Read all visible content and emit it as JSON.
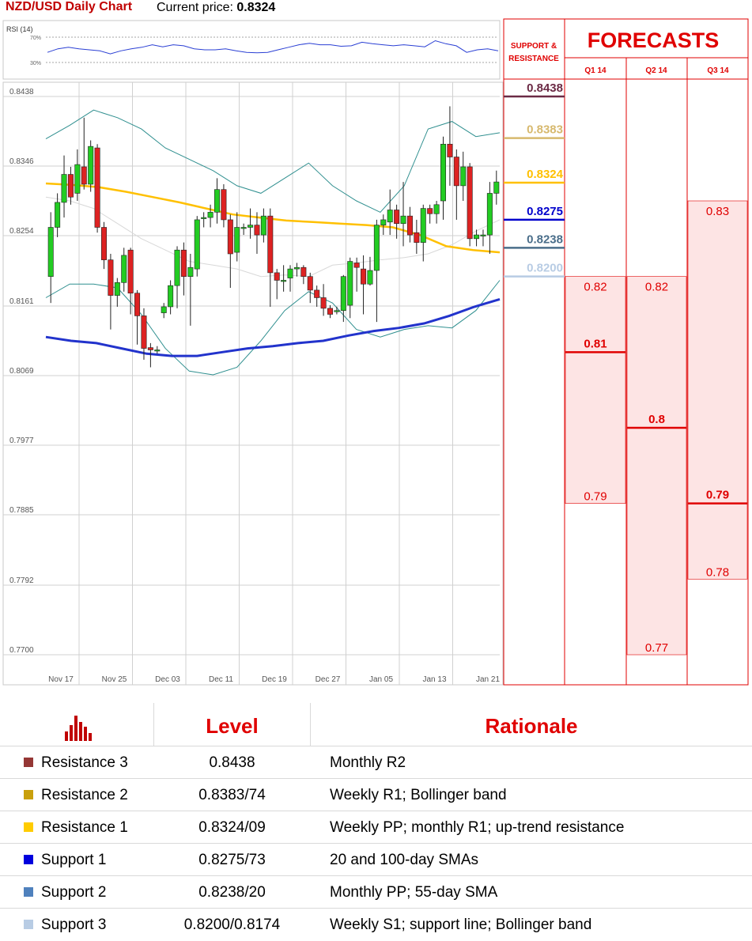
{
  "header": {
    "title": "NZD/USD Daily Chart",
    "price_label": "Current price:",
    "price_value": "0.8324"
  },
  "forecast_panel": {
    "support_resistance_label_1": "SUPPORT &",
    "support_resistance_label_2": "RESISTANCE",
    "title": "FORECASTS",
    "columns": [
      "Q1 14",
      "Q2 14",
      "Q3 14"
    ]
  },
  "chart_data": {
    "type": "candlestick",
    "title": "NZD/USD Daily Chart",
    "ylim": [
      0.77,
      0.846
    ],
    "y_ticks": [
      "0.8438",
      "0.8346",
      "0.8254",
      "0.8161",
      "0.8069",
      "0.7977",
      "0.7885",
      "0.7792",
      "0.7700"
    ],
    "x_ticks": [
      "Nov 17",
      "Nov 25",
      "Dec 03",
      "Dec 11",
      "Dec 19",
      "Dec 27",
      "Jan 05",
      "Jan 13",
      "Jan 21"
    ],
    "rsi": {
      "label": "RSI (14)",
      "levels": [
        "70%",
        "30%"
      ],
      "values": [
        45,
        52,
        55,
        52,
        50,
        48,
        42,
        48,
        52,
        55,
        60,
        56,
        60,
        58,
        52,
        50,
        50,
        52,
        48,
        45,
        44,
        45,
        50,
        55,
        60,
        63,
        60,
        60,
        57,
        58,
        65,
        62,
        60,
        58,
        60,
        58,
        56,
        68,
        62,
        58,
        45,
        50,
        52,
        48
      ]
    },
    "candles": [
      [
        0.82,
        0.8265,
        0.8165,
        0.8285
      ],
      [
        0.8265,
        0.8298,
        0.8252,
        0.831
      ],
      [
        0.8298,
        0.8335,
        0.8278,
        0.836
      ],
      [
        0.8335,
        0.8305,
        0.8295,
        0.8345
      ],
      [
        0.831,
        0.8348,
        0.83,
        0.8368
      ],
      [
        0.8345,
        0.8322,
        0.8315,
        0.841
      ],
      [
        0.8322,
        0.8372,
        0.8312,
        0.838
      ],
      [
        0.837,
        0.8265,
        0.8258,
        0.8375
      ],
      [
        0.8265,
        0.8222,
        0.821,
        0.8272
      ],
      [
        0.8222,
        0.8175,
        0.813,
        0.823
      ],
      [
        0.8175,
        0.8192,
        0.816,
        0.8198
      ],
      [
        0.8192,
        0.8228,
        0.818,
        0.8238
      ],
      [
        0.8235,
        0.8178,
        0.815,
        0.8238
      ],
      [
        0.8178,
        0.8148,
        0.811,
        0.8182
      ],
      [
        0.8148,
        0.8105,
        0.809,
        0.8158
      ],
      [
        0.8106,
        0.8103,
        0.808,
        0.8112
      ],
      [
        0.8102,
        0.8103,
        0.8098,
        0.8108
      ],
      [
        0.8152,
        0.816,
        0.8145,
        0.8165
      ],
      [
        0.816,
        0.8188,
        0.815,
        0.8195
      ],
      [
        0.8188,
        0.8235,
        0.8158,
        0.824
      ],
      [
        0.8235,
        0.82,
        0.8175,
        0.8245
      ],
      [
        0.82,
        0.8212,
        0.8135,
        0.823
      ],
      [
        0.821,
        0.8275,
        0.82,
        0.828
      ],
      [
        0.8277,
        0.8278,
        0.8265,
        0.8285
      ],
      [
        0.8278,
        0.8285,
        0.8265,
        0.8295
      ],
      [
        0.8285,
        0.8315,
        0.827,
        0.833
      ],
      [
        0.8315,
        0.8275,
        0.8265,
        0.8322
      ],
      [
        0.8275,
        0.823,
        0.8185,
        0.8282
      ],
      [
        0.8232,
        0.8265,
        0.822,
        0.8285
      ],
      [
        0.8265,
        0.8265,
        0.8255,
        0.827
      ],
      [
        0.8265,
        0.8268,
        0.825,
        0.829
      ],
      [
        0.8268,
        0.8255,
        0.823,
        0.8285
      ],
      [
        0.8255,
        0.828,
        0.8245,
        0.829
      ],
      [
        0.828,
        0.8205,
        0.816,
        0.829
      ],
      [
        0.8205,
        0.8195,
        0.817,
        0.821
      ],
      [
        0.8195,
        0.8195,
        0.818,
        0.8215
      ],
      [
        0.8198,
        0.821,
        0.818,
        0.8215
      ],
      [
        0.821,
        0.8212,
        0.82,
        0.8218
      ],
      [
        0.8212,
        0.82,
        0.819,
        0.8215
      ],
      [
        0.82,
        0.8182,
        0.8165,
        0.8205
      ],
      [
        0.8182,
        0.8172,
        0.816,
        0.8188
      ],
      [
        0.8172,
        0.8158,
        0.8148,
        0.819
      ],
      [
        0.8158,
        0.815,
        0.8145,
        0.8162
      ],
      [
        0.8155,
        0.8155,
        0.815,
        0.816
      ],
      [
        0.8155,
        0.82,
        0.814,
        0.8202
      ],
      [
        0.8162,
        0.822,
        0.8145,
        0.8225
      ],
      [
        0.8218,
        0.8212,
        0.818,
        0.8225
      ],
      [
        0.821,
        0.819,
        0.815,
        0.8228
      ],
      [
        0.819,
        0.8208,
        0.8188,
        0.8226
      ],
      [
        0.8208,
        0.8268,
        0.814,
        0.8275
      ],
      [
        0.8268,
        0.8275,
        0.8255,
        0.8282
      ],
      [
        0.8272,
        0.8288,
        0.8255,
        0.8315
      ],
      [
        0.8288,
        0.827,
        0.825,
        0.8295
      ],
      [
        0.827,
        0.828,
        0.824,
        0.8325
      ],
      [
        0.828,
        0.8255,
        0.8245,
        0.8292
      ],
      [
        0.8258,
        0.8245,
        0.823,
        0.8275
      ],
      [
        0.8245,
        0.829,
        0.822,
        0.8295
      ],
      [
        0.829,
        0.8283,
        0.827,
        0.8295
      ],
      [
        0.8283,
        0.8295,
        0.827,
        0.83
      ],
      [
        0.83,
        0.8375,
        0.8275,
        0.8385
      ],
      [
        0.8375,
        0.8358,
        0.832,
        0.8425
      ],
      [
        0.8358,
        0.832,
        0.8275,
        0.8368
      ],
      [
        0.832,
        0.8345,
        0.83,
        0.8365
      ],
      [
        0.8345,
        0.825,
        0.824,
        0.835
      ],
      [
        0.825,
        0.8255,
        0.824,
        0.8262
      ],
      [
        0.8255,
        0.8255,
        0.824,
        0.8262
      ],
      [
        0.8255,
        0.831,
        0.823,
        0.8325
      ],
      [
        0.831,
        0.8325,
        0.8295,
        0.834
      ]
    ],
    "sma55": [
      0.8323,
      0.8321,
      0.8318,
      0.8312,
      0.8305,
      0.8298,
      0.829,
      0.8282,
      0.8278,
      0.8274,
      0.8272,
      0.827,
      0.8268,
      0.8265,
      0.8255,
      0.824,
      0.8235,
      0.8232
    ],
    "sma100": [
      0.812,
      0.8115,
      0.8112,
      0.8105,
      0.8098,
      0.8095,
      0.8095,
      0.81,
      0.8105,
      0.8108,
      0.8112,
      0.8115,
      0.8122,
      0.8128,
      0.8132,
      0.8138,
      0.8148,
      0.816,
      0.817
    ],
    "bb_upper": [
      0.8382,
      0.84,
      0.842,
      0.841,
      0.8395,
      0.837,
      0.8355,
      0.834,
      0.832,
      0.831,
      0.833,
      0.835,
      0.832,
      0.83,
      0.8285,
      0.832,
      0.8395,
      0.8405,
      0.8385,
      0.839
    ],
    "bb_lower": [
      0.8172,
      0.819,
      0.819,
      0.8185,
      0.815,
      0.8105,
      0.8075,
      0.807,
      0.808,
      0.8115,
      0.8155,
      0.818,
      0.8165,
      0.813,
      0.812,
      0.813,
      0.8135,
      0.8132,
      0.8155,
      0.8195
    ],
    "bb_mid": [
      0.8305,
      0.83,
      0.829,
      0.827,
      0.825,
      0.8235,
      0.822,
      0.8215,
      0.821,
      0.82,
      0.8202,
      0.82,
      0.8215,
      0.8218,
      0.8222,
      0.8225,
      0.823,
      0.8242,
      0.826,
      0.8275
    ],
    "levels": [
      {
        "label": "0.8438",
        "value": 0.8438,
        "line_color": "#6b2a45",
        "text_color": "#6b2a45"
      },
      {
        "label": "0.8383",
        "value": 0.8383,
        "line_color": "#d7b96e",
        "text_color": "#d7b96e"
      },
      {
        "label": "0.8324",
        "value": 0.8324,
        "line_color": "#ffc000",
        "text_color": "#ffc000"
      },
      {
        "label": "0.8275",
        "value": 0.8275,
        "line_color": "#0000cc",
        "text_color": "#0000cc"
      },
      {
        "label": "0.8238",
        "value": 0.8238,
        "line_color": "#4a6e8a",
        "text_color": "#4a6e8a"
      },
      {
        "label": "0.8200",
        "value": 0.82,
        "line_color": "#b8cce4",
        "text_color": "#b8cce4"
      }
    ],
    "forecasts": [
      {
        "quarter": "Q1 14",
        "high": 0.82,
        "median": 0.81,
        "low": 0.79,
        "high_label": "0.82",
        "median_label": "0.81",
        "low_label": "0.79"
      },
      {
        "quarter": "Q2 14",
        "high": 0.82,
        "median": 0.8,
        "low": 0.77,
        "high_label": "0.82",
        "median_label": "0.8",
        "low_label": "0.77"
      },
      {
        "quarter": "Q3 14",
        "high": 0.83,
        "median": 0.79,
        "low": 0.78,
        "high_label": "0.83",
        "median_label": "0.79",
        "low_label": "0.78"
      }
    ]
  },
  "table": {
    "headers": [
      "Level",
      "Rationale"
    ],
    "rows": [
      {
        "name": "Resistance 3",
        "color": "#953735",
        "level": "0.8438",
        "rationale": "Monthly R2"
      },
      {
        "name": "Resistance 2",
        "color": "#c9a00c",
        "level": "0.8383/74",
        "rationale": "Weekly R1; Bollinger band"
      },
      {
        "name": "Resistance 1",
        "color": "#ffcc00",
        "level": "0.8324/09",
        "rationale": "Weekly PP; monthly R1; up-trend resistance"
      },
      {
        "name": "Support 1",
        "color": "#0000dd",
        "level": "0.8275/73",
        "rationale": "20 and 100-day SMAs"
      },
      {
        "name": "Support 2",
        "color": "#4f81bd",
        "level": "0.8238/20",
        "rationale": "Monthly PP; 55-day SMA"
      },
      {
        "name": "Support 3",
        "color": "#b8cce4",
        "level": "0.8200/0.8174",
        "rationale": "Weekly S1; support line; Bollinger band"
      }
    ]
  },
  "colors": {
    "red": "#e00000",
    "up": "#22cc22",
    "down": "#dd2222",
    "forecast_fill": "#fde4e4"
  }
}
